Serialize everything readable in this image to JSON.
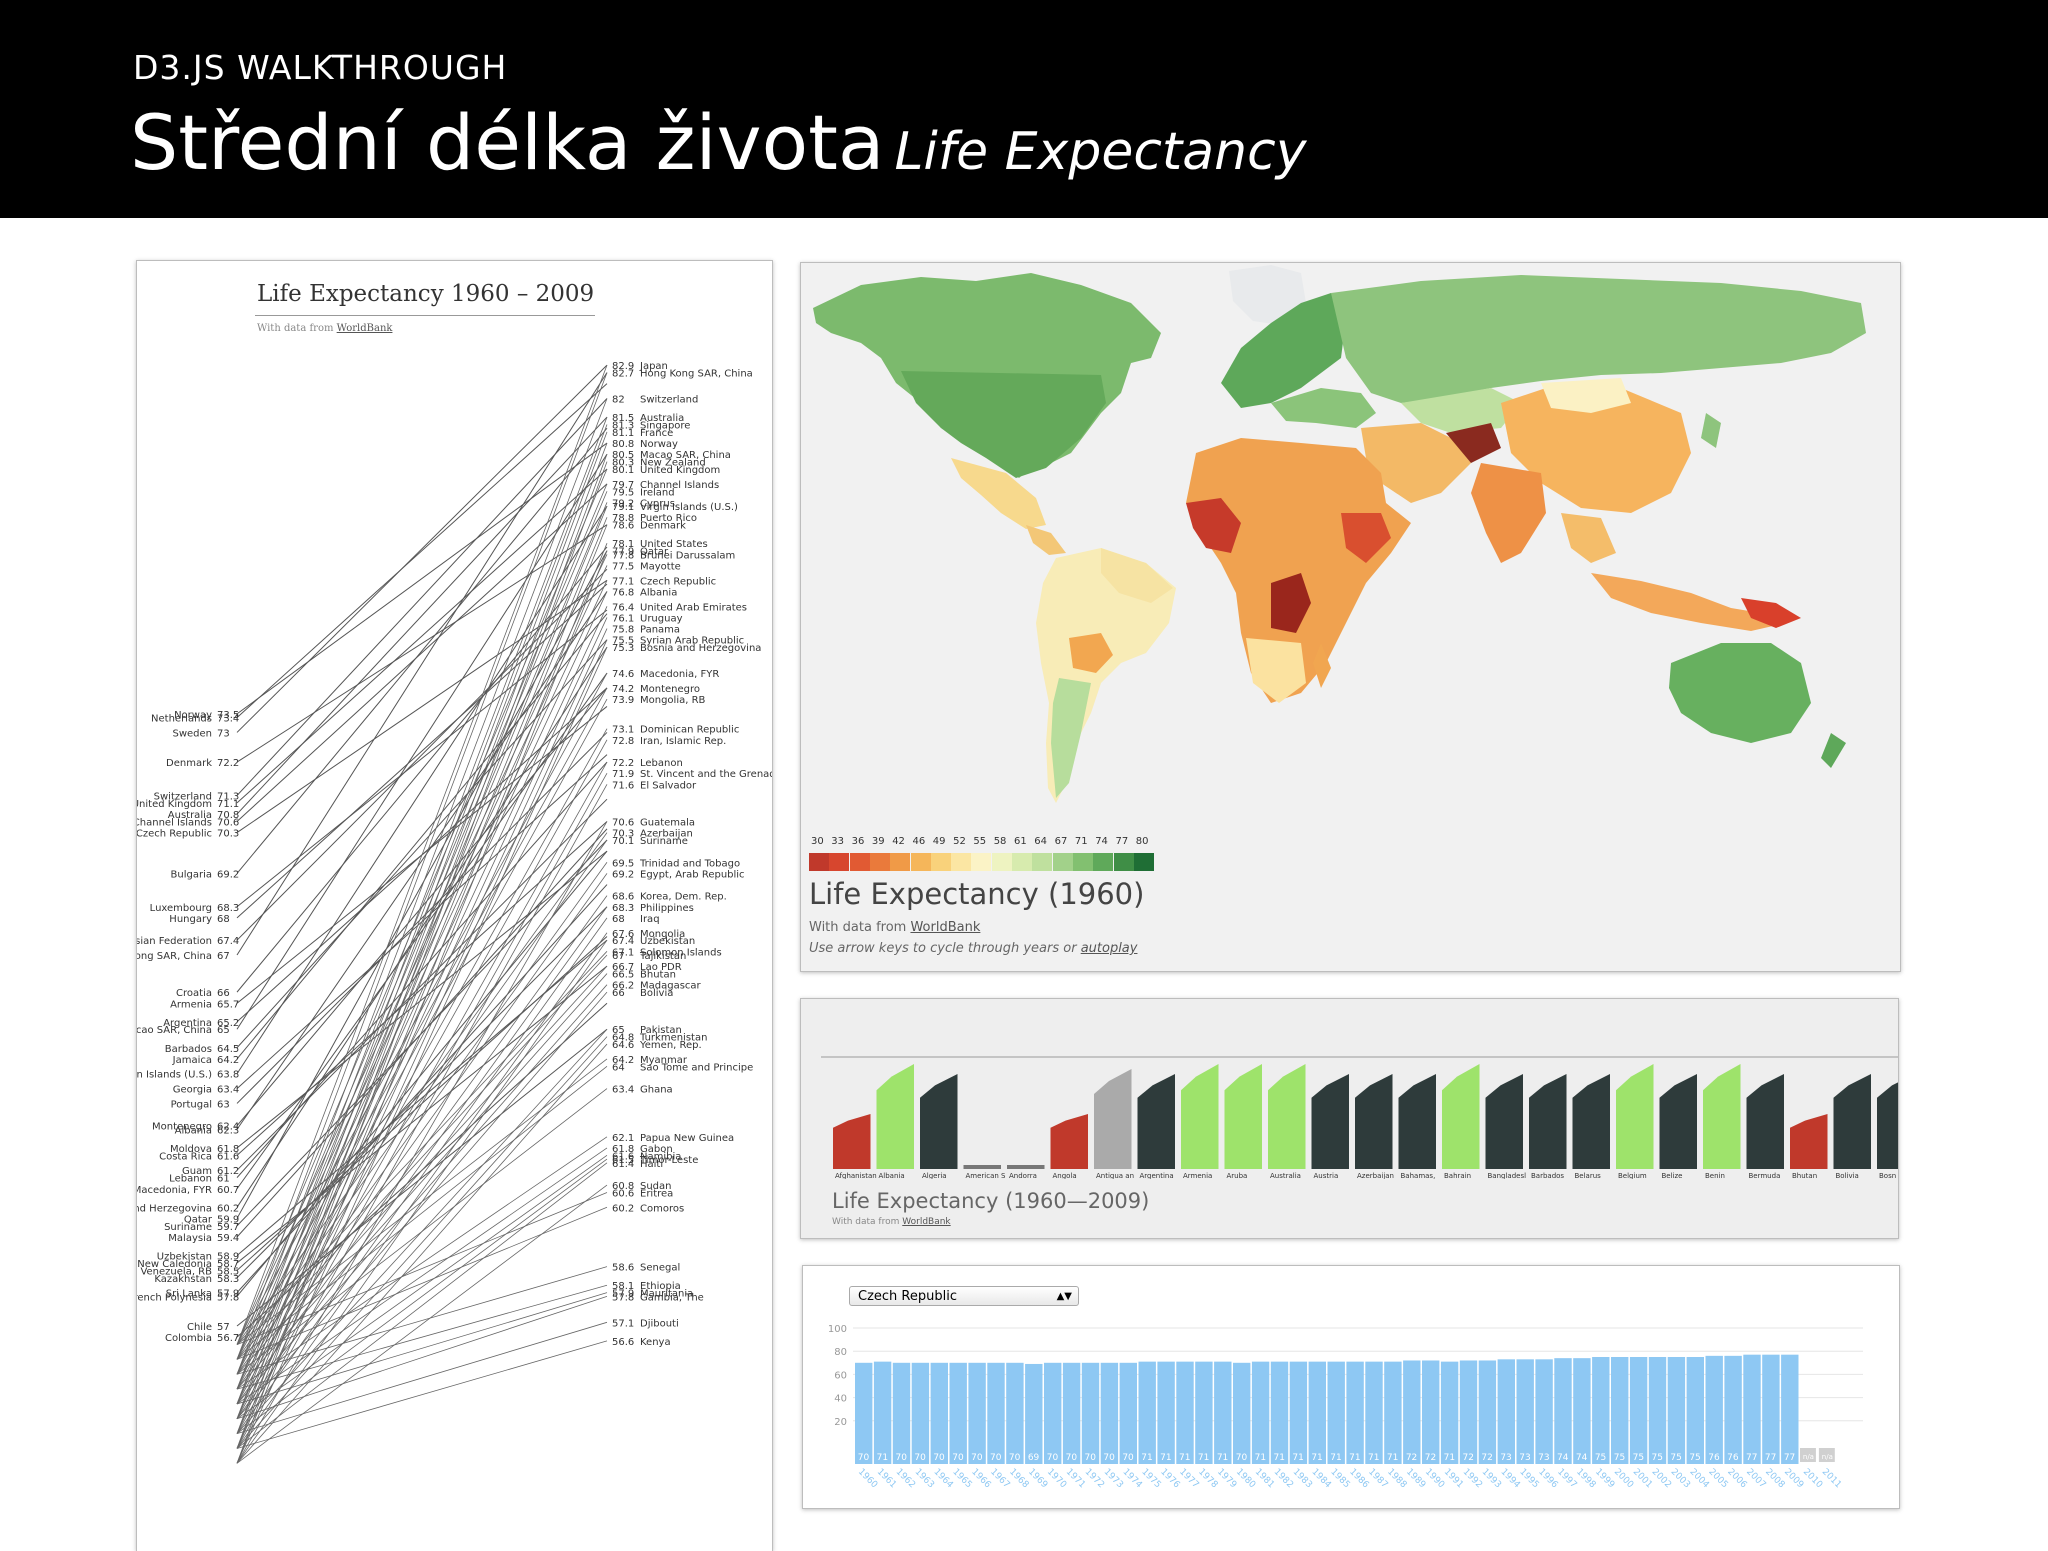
{
  "slide": {
    "kicker": "D3.JS WALKTHROUGH",
    "title_cs": "Střední délka života",
    "title_en": "Life Expectancy"
  },
  "slope": {
    "title": "Life Expectancy 1960 – 2009",
    "subtitle_prefix": "With data from",
    "subtitle_link": "WorldBank",
    "left": [
      {
        "label": "Norway",
        "value": "73.5"
      },
      {
        "label": "Netherlands",
        "value": "73.4"
      },
      {
        "label": "Sweden",
        "value": "73"
      },
      {
        "label": "Denmark",
        "value": "72.2"
      },
      {
        "label": "Switzerland",
        "value": "71.3"
      },
      {
        "label": "United Kingdom",
        "value": "71.1"
      },
      {
        "label": "Australia",
        "value": "70.8"
      },
      {
        "label": "Channel Islands",
        "value": "70.6"
      },
      {
        "label": "Czech Republic",
        "value": "70.3"
      },
      {
        "label": "Bulgaria",
        "value": "69.2"
      },
      {
        "label": "Luxembourg",
        "value": "68.3"
      },
      {
        "label": "Hungary",
        "value": "68"
      },
      {
        "label": "Russian Federation",
        "value": "67.4"
      },
      {
        "label": "Hong Kong SAR, China",
        "value": "67"
      },
      {
        "label": "Croatia",
        "value": "66"
      },
      {
        "label": "Armenia",
        "value": "65.7"
      },
      {
        "label": "Argentina",
        "value": "65.2"
      },
      {
        "label": "Macao SAR, China",
        "value": "65"
      },
      {
        "label": "Barbados",
        "value": "64.5"
      },
      {
        "label": "Jamaica",
        "value": "64.2"
      },
      {
        "label": "Virgin Islands (U.S.)",
        "value": "63.8"
      },
      {
        "label": "Georgia",
        "value": "63.4"
      },
      {
        "label": "Portugal",
        "value": "63"
      },
      {
        "label": "Montenegro",
        "value": "62.4"
      },
      {
        "label": "Albania",
        "value": "62.3"
      },
      {
        "label": "Moldova",
        "value": "61.8"
      },
      {
        "label": "Costa Rica",
        "value": "61.6"
      },
      {
        "label": "Guam",
        "value": "61.2"
      },
      {
        "label": "Lebanon",
        "value": "61"
      },
      {
        "label": "Macedonia, FYR",
        "value": "60.7"
      },
      {
        "label": "Bosnia and Herzegovina",
        "value": "60.2"
      },
      {
        "label": "Qatar",
        "value": "59.9"
      },
      {
        "label": "Suriname",
        "value": "59.7"
      },
      {
        "label": "Malaysia",
        "value": "59.4"
      },
      {
        "label": "Uzbekistan",
        "value": "58.9"
      },
      {
        "label": "New Caledonia",
        "value": "58.7"
      },
      {
        "label": "Venezuela, RB",
        "value": "58.5"
      },
      {
        "label": "Kazakhstan",
        "value": "58.3"
      },
      {
        "label": "Sri Lanka",
        "value": "57.9"
      },
      {
        "label": "French Polynesia",
        "value": "57.8"
      },
      {
        "label": "Chile",
        "value": "57"
      },
      {
        "label": "Colombia",
        "value": "56.7"
      }
    ],
    "right": [
      {
        "label": "Japan",
        "value": "82.9"
      },
      {
        "label": "Hong Kong SAR, China",
        "value": "82.7"
      },
      {
        "label": "Switzerland",
        "value": "82"
      },
      {
        "label": "Australia",
        "value": "81.5"
      },
      {
        "label": "Singapore",
        "value": "81.3"
      },
      {
        "label": "France",
        "value": "81.1"
      },
      {
        "label": "Norway",
        "value": "80.8"
      },
      {
        "label": "Macao SAR, China",
        "value": "80.5"
      },
      {
        "label": "New Zealand",
        "value": "80.3"
      },
      {
        "label": "United Kingdom",
        "value": "80.1"
      },
      {
        "label": "Channel Islands",
        "value": "79.7"
      },
      {
        "label": "Ireland",
        "value": "79.5"
      },
      {
        "label": "Cyprus",
        "value": "79.2"
      },
      {
        "label": "Virgin Islands (U.S.)",
        "value": "79.1"
      },
      {
        "label": "Puerto Rico",
        "value": "78.8"
      },
      {
        "label": "Denmark",
        "value": "78.6"
      },
      {
        "label": "United States",
        "value": "78.1"
      },
      {
        "label": "Qatar",
        "value": "77.9"
      },
      {
        "label": "Brunei Darussalam",
        "value": "77.8"
      },
      {
        "label": "Mayotte",
        "value": "77.5"
      },
      {
        "label": "Czech Republic",
        "value": "77.1"
      },
      {
        "label": "Albania",
        "value": "76.8"
      },
      {
        "label": "United Arab Emirates",
        "value": "76.4"
      },
      {
        "label": "Uruguay",
        "value": "76.1"
      },
      {
        "label": "Panama",
        "value": "75.8"
      },
      {
        "label": "Syrian Arab Republic",
        "value": "75.5"
      },
      {
        "label": "Bosnia and Herzegovina",
        "value": "75.3"
      },
      {
        "label": "Macedonia, FYR",
        "value": "74.6"
      },
      {
        "label": "Montenegro",
        "value": "74.2"
      },
      {
        "label": "Mongolia, RB",
        "value": "73.9"
      },
      {
        "label": "Dominican Republic",
        "value": "73.1"
      },
      {
        "label": "Iran, Islamic Rep.",
        "value": "72.8"
      },
      {
        "label": "Lebanon",
        "value": "72.2"
      },
      {
        "label": "St. Vincent and the Grenadines",
        "value": "71.9"
      },
      {
        "label": "El Salvador",
        "value": "71.6"
      },
      {
        "label": "Guatemala",
        "value": "70.6"
      },
      {
        "label": "Azerbaijan",
        "value": "70.3"
      },
      {
        "label": "Suriname",
        "value": "70.1"
      },
      {
        "label": "Trinidad and Tobago",
        "value": "69.5"
      },
      {
        "label": "Egypt, Arab Republic",
        "value": "69.2"
      },
      {
        "label": "Korea, Dem. Rep.",
        "value": "68.6"
      },
      {
        "label": "Philippines",
        "value": "68.3"
      },
      {
        "label": "Iraq",
        "value": "68"
      },
      {
        "label": "Mongolia",
        "value": "67.6"
      },
      {
        "label": "Uzbekistan",
        "value": "67.4"
      },
      {
        "label": "Solomon Islands",
        "value": "67.1"
      },
      {
        "label": "Tajikistan",
        "value": "67"
      },
      {
        "label": "Lao PDR",
        "value": "66.7"
      },
      {
        "label": "Bhutan",
        "value": "66.5"
      },
      {
        "label": "Madagascar",
        "value": "66.2"
      },
      {
        "label": "Bolivia",
        "value": "66"
      },
      {
        "label": "Pakistan",
        "value": "65"
      },
      {
        "label": "Turkmenistan",
        "value": "64.8"
      },
      {
        "label": "Yemen, Rep.",
        "value": "64.6"
      },
      {
        "label": "Myanmar",
        "value": "64.2"
      },
      {
        "label": "Sao Tome and Principe",
        "value": "64"
      },
      {
        "label": "Ghana",
        "value": "63.4"
      },
      {
        "label": "Papua New Guinea",
        "value": "62.1"
      },
      {
        "label": "Gabon",
        "value": "61.8"
      },
      {
        "label": "Namibia",
        "value": "61.6"
      },
      {
        "label": "Timor-Leste",
        "value": "61.5"
      },
      {
        "label": "Haiti",
        "value": "61.4"
      },
      {
        "label": "Sudan",
        "value": "60.8"
      },
      {
        "label": "Eritrea",
        "value": "60.6"
      },
      {
        "label": "Comoros",
        "value": "60.2"
      },
      {
        "label": "Senegal",
        "value": "58.6"
      },
      {
        "label": "Ethiopia",
        "value": "58.1"
      },
      {
        "label": "Mauritania",
        "value": "57.9"
      },
      {
        "label": "Gambia, The",
        "value": "57.8"
      },
      {
        "label": "Djibouti",
        "value": "57.1"
      },
      {
        "label": "Kenya",
        "value": "56.6"
      }
    ]
  },
  "map": {
    "legend_values": [
      "30",
      "33",
      "36",
      "39",
      "42",
      "46",
      "49",
      "52",
      "55",
      "58",
      "61",
      "64",
      "67",
      "71",
      "74",
      "77",
      "80"
    ],
    "legend_colors": [
      "#c0392b",
      "#d7462e",
      "#e15a33",
      "#ea7a3b",
      "#f09a47",
      "#f5b65a",
      "#f9d27b",
      "#fbe6a3",
      "#fbf3c6",
      "#eef3c1",
      "#d7ebae",
      "#bfe09e",
      "#a2d18a",
      "#82c070",
      "#5fa95a",
      "#3f8e46",
      "#1f6e35"
    ],
    "title": "Life Expectancy (1960)",
    "source_prefix": "With data from",
    "source_link": "WorldBank",
    "hint_prefix": "Use arrow keys to cycle through years or",
    "hint_link": "autoplay"
  },
  "bars": {
    "countries": [
      "Afghanistan",
      "Albania",
      "Algeria",
      "American S",
      "Andorra",
      "Angola",
      "Antigua an",
      "Argentina",
      "Armenia",
      "Aruba",
      "Australia",
      "Austria",
      "Azerbaijan",
      "Bahamas,",
      "Bahrain",
      "Bangladesl",
      "Barbados",
      "Belarus",
      "Belgium",
      "Belize",
      "Benin",
      "Bermuda",
      "Bhutan",
      "Bolivia",
      "Bosn"
    ],
    "title": "Life Expectancy (1960—2009)",
    "source_prefix": "With data from",
    "source_link": "WorldBank"
  },
  "czech": {
    "selected": "Czech Republic",
    "chart_data": {
      "type": "bar",
      "y_ticks": [
        "100",
        "80",
        "60",
        "40",
        "20"
      ],
      "ylim": [
        0,
        100
      ],
      "years": [
        "1960",
        "1961",
        "1962",
        "1963",
        "1964",
        "1965",
        "1966",
        "1967",
        "1968",
        "1969",
        "1970",
        "1971",
        "1972",
        "1973",
        "1974",
        "1975",
        "1976",
        "1977",
        "1978",
        "1979",
        "1980",
        "1981",
        "1982",
        "1983",
        "1984",
        "1985",
        "1986",
        "1987",
        "1988",
        "1989",
        "1990",
        "1991",
        "1992",
        "1993",
        "1994",
        "1995",
        "1996",
        "1997",
        "1998",
        "1999",
        "2000",
        "2001",
        "2002",
        "2003",
        "2004",
        "2005",
        "2006",
        "2007",
        "2008",
        "2009",
        "2010",
        "2011"
      ],
      "values": [
        70,
        71,
        70,
        70,
        70,
        70,
        70,
        70,
        70,
        69,
        70,
        70,
        70,
        70,
        70,
        71,
        71,
        71,
        71,
        71,
        70,
        71,
        71,
        71,
        71,
        71,
        71,
        71,
        71,
        72,
        72,
        71,
        72,
        72,
        73,
        73,
        73,
        74,
        74,
        75,
        75,
        75,
        75,
        75,
        75,
        76,
        76,
        77,
        77,
        77,
        null,
        null
      ],
      "labels": [
        "70",
        "71",
        "70",
        "70",
        "70",
        "70",
        "70",
        "70",
        "70",
        "69",
        "70",
        "70",
        "70",
        "70",
        "70",
        "71",
        "71",
        "71",
        "71",
        "71",
        "70",
        "71",
        "71",
        "71",
        "71",
        "71",
        "71",
        "71",
        "71",
        "72",
        "72",
        "71",
        "72",
        "72",
        "73",
        "73",
        "73",
        "74",
        "74",
        "75",
        "75",
        "75",
        "75",
        "75",
        "75",
        "76",
        "76",
        "77",
        "77",
        "77",
        "n/a",
        "n/a"
      ]
    }
  }
}
